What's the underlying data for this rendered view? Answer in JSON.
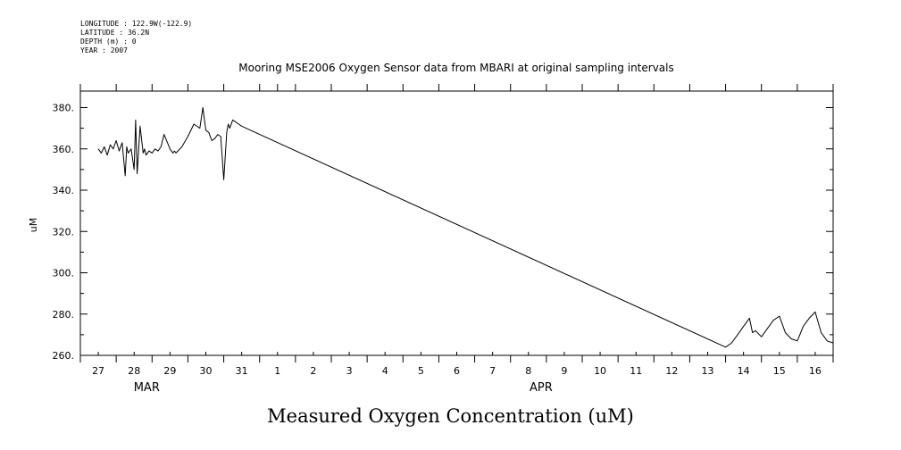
{
  "meta": {
    "longitude": "LONGITUDE : 122.9W(-122.9)",
    "latitude": "LATITUDE : 36.2N",
    "depth": "DEPTH (m) : 0",
    "year": "YEAR : 2007"
  },
  "chart_data": {
    "type": "line",
    "title": "Mooring MSE2006 Oxygen Sensor data from MBARI at original sampling intervals",
    "xlabel": "Measured Oxygen Concentration (uM)",
    "ylabel": "uM",
    "xlim": [
      "2007-03-26T12:00",
      "2007-04-16T12:00"
    ],
    "ylim": [
      260,
      388
    ],
    "yticks": [
      260,
      280,
      300,
      320,
      340,
      360,
      380
    ],
    "ytick_labels": [
      "260.",
      "280.",
      "300.",
      "320.",
      "340.",
      "360.",
      "380."
    ],
    "xtick_labels": [
      "27",
      "28",
      "29",
      "30",
      "31",
      "1",
      "2",
      "3",
      "4",
      "5",
      "6",
      "7",
      "8",
      "9",
      "10",
      "11",
      "12",
      "13",
      "14",
      "15",
      "16"
    ],
    "month_labels": [
      {
        "text": "MAR",
        "date": "2007-03-28T12:00"
      },
      {
        "text": "APR",
        "date": "2007-04-08T12:00"
      }
    ],
    "grid": false,
    "series": [
      {
        "x": [
          "2007-03-27T00:00",
          "2007-03-27T02:00",
          "2007-03-27T04:00",
          "2007-03-27T06:00",
          "2007-03-27T08:00",
          "2007-03-27T10:00",
          "2007-03-27T12:00",
          "2007-03-27T14:00",
          "2007-03-27T16:00",
          "2007-03-27T18:00",
          "2007-03-27T19:00",
          "2007-03-27T20:00",
          "2007-03-27T22:00",
          "2007-03-28T00:00",
          "2007-03-28T01:00",
          "2007-03-28T02:00",
          "2007-03-28T04:00",
          "2007-03-28T06:00",
          "2007-03-28T07:00",
          "2007-03-28T08:00",
          "2007-03-28T10:00",
          "2007-03-28T12:00",
          "2007-03-28T14:00",
          "2007-03-28T16:00",
          "2007-03-28T18:00",
          "2007-03-28T20:00",
          "2007-03-29T00:00",
          "2007-03-29T02:00",
          "2007-03-29T03:00",
          "2007-03-29T04:00",
          "2007-03-29T08:00",
          "2007-03-29T12:00",
          "2007-03-29T16:00",
          "2007-03-29T20:00",
          "2007-03-29T22:00",
          "2007-03-30T00:00",
          "2007-03-30T02:00",
          "2007-03-30T03:00",
          "2007-03-30T04:00",
          "2007-03-30T06:00",
          "2007-03-30T08:00",
          "2007-03-30T10:00",
          "2007-03-30T12:00",
          "2007-03-30T14:00",
          "2007-03-30T15:00",
          "2007-03-30T16:00",
          "2007-03-30T18:00",
          "2007-03-30T20:00",
          "2007-03-30T22:00",
          "2007-03-31T00:00",
          "2007-04-13T12:00",
          "2007-04-13T16:00",
          "2007-04-13T20:00",
          "2007-04-14T00:00",
          "2007-04-14T04:00",
          "2007-04-14T06:00",
          "2007-04-14T08:00",
          "2007-04-14T12:00",
          "2007-04-14T16:00",
          "2007-04-14T20:00",
          "2007-04-15T00:00",
          "2007-04-15T04:00",
          "2007-04-15T08:00",
          "2007-04-15T12:00",
          "2007-04-15T16:00",
          "2007-04-15T20:00",
          "2007-04-16T00:00",
          "2007-04-16T04:00",
          "2007-04-16T08:00",
          "2007-04-16T12:00"
        ],
        "y": [
          360,
          358,
          361,
          357,
          362,
          360,
          364,
          359,
          363,
          347,
          361,
          358,
          360,
          350,
          374,
          348,
          371,
          358,
          360,
          357,
          359,
          358,
          360,
          359,
          361,
          367,
          360,
          358,
          359,
          358,
          361,
          366,
          372,
          370,
          380,
          369,
          368,
          366,
          364,
          365,
          367,
          366,
          345,
          368,
          372,
          370,
          374,
          373,
          372,
          371,
          264,
          266,
          270,
          274,
          278,
          271,
          272,
          269,
          273,
          277,
          279,
          271,
          268,
          267,
          274,
          278,
          281,
          271,
          267,
          266
        ]
      }
    ]
  }
}
